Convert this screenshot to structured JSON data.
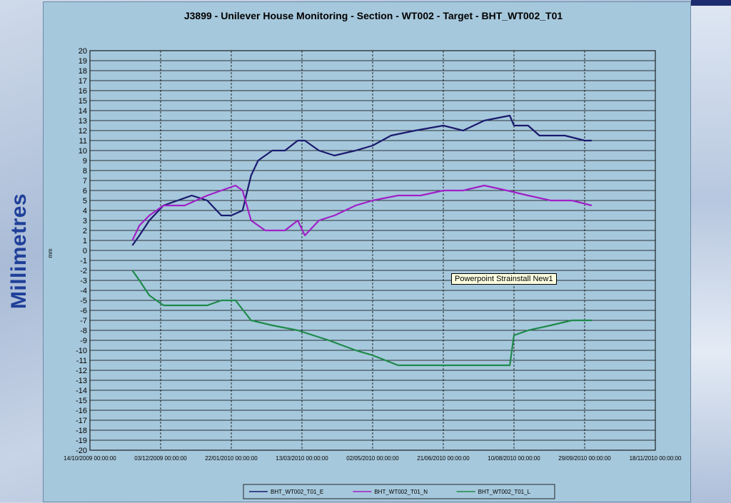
{
  "side_label": "Millimetres",
  "tooltip": "Powerpoint Strainstall New1",
  "colors": {
    "frame_bg": "#a6c8dc",
    "grid": "#000000",
    "series_E": "#1a1a6e",
    "series_N": "#a020c8",
    "series_L": "#1e8a4a",
    "side_label": "#1f3f99"
  },
  "chart_data": {
    "type": "line",
    "title": "J3899 - Unilever House Monitoring - Section - WT002 - Target - BHT_WT002_T01",
    "ylabel": "mm",
    "xlabel": "",
    "ylim": [
      -20,
      20
    ],
    "y_ticks": [
      20,
      19,
      18,
      17,
      16,
      15,
      14,
      13,
      12,
      11,
      10,
      9,
      8,
      7,
      6,
      5,
      4,
      3,
      2,
      1,
      0,
      -1,
      -2,
      -3,
      -4,
      -5,
      -6,
      -7,
      -8,
      -9,
      -10,
      -11,
      -12,
      -13,
      -14,
      -15,
      -16,
      -17,
      -18,
      -19,
      -20
    ],
    "x_ticks": [
      "14/10/2009 00:00:00",
      "03/12/2009 00:00:00",
      "22/01/2010 00:00:00",
      "13/03/2010 00:00:00",
      "02/05/2010 00:00:00",
      "21/06/2010 00:00:00",
      "10/08/2010 00:00:00",
      "29/09/2010 00:00:00",
      "18/11/2010 00:00:00"
    ],
    "grid": true,
    "legend_position": "bottom",
    "series": [
      {
        "name": "BHT_WT002_T01_E",
        "x": [
          "2009-11-13",
          "2009-11-18",
          "2009-11-25",
          "2009-12-05",
          "2009-12-15",
          "2009-12-25",
          "2010-01-05",
          "2010-01-15",
          "2010-01-22",
          "2010-01-30",
          "2010-02-05",
          "2010-02-10",
          "2010-02-20",
          "2010-03-01",
          "2010-03-10",
          "2010-03-15",
          "2010-03-25",
          "2010-04-05",
          "2010-04-20",
          "2010-05-02",
          "2010-05-15",
          "2010-06-01",
          "2010-06-21",
          "2010-07-05",
          "2010-07-20",
          "2010-08-07",
          "2010-08-10",
          "2010-08-20",
          "2010-08-28",
          "2010-09-05",
          "2010-09-15",
          "2010-09-29",
          "2010-10-04"
        ],
        "values": [
          0.5,
          1.5,
          3,
          4.5,
          5,
          5.5,
          5,
          3.5,
          3.5,
          4,
          7.5,
          9,
          10,
          10,
          11,
          11,
          10,
          9.5,
          10,
          10.5,
          11.5,
          12,
          12.5,
          12,
          13,
          13.5,
          12.5,
          12.5,
          11.5,
          11.5,
          11.5,
          11,
          11
        ]
      },
      {
        "name": "BHT_WT002_T01_N",
        "x": [
          "2009-11-13",
          "2009-11-18",
          "2009-11-25",
          "2009-12-05",
          "2009-12-20",
          "2010-01-05",
          "2010-01-15",
          "2010-01-25",
          "2010-01-30",
          "2010-02-05",
          "2010-02-15",
          "2010-03-01",
          "2010-03-10",
          "2010-03-15",
          "2010-03-25",
          "2010-04-05",
          "2010-04-20",
          "2010-05-02",
          "2010-05-20",
          "2010-06-05",
          "2010-06-21",
          "2010-07-05",
          "2010-07-20",
          "2010-08-05",
          "2010-08-20",
          "2010-09-05",
          "2010-09-20",
          "2010-10-04"
        ],
        "values": [
          1,
          2.5,
          3.5,
          4.5,
          4.5,
          5.5,
          6,
          6.5,
          6,
          3,
          2,
          2,
          3,
          1.5,
          3,
          3.5,
          4.5,
          5,
          5.5,
          5.5,
          6,
          6,
          6.5,
          6,
          5.5,
          5,
          5,
          4.5
        ]
      },
      {
        "name": "BHT_WT002_T01_L",
        "x": [
          "2009-11-13",
          "2009-11-18",
          "2009-11-25",
          "2009-12-05",
          "2009-12-20",
          "2010-01-05",
          "2010-01-15",
          "2010-01-25",
          "2010-02-05",
          "2010-02-20",
          "2010-03-10",
          "2010-04-01",
          "2010-04-20",
          "2010-05-02",
          "2010-05-20",
          "2010-06-05",
          "2010-06-21",
          "2010-07-10",
          "2010-08-05",
          "2010-08-07",
          "2010-08-10",
          "2010-08-20",
          "2010-09-05",
          "2010-09-20",
          "2010-10-04"
        ],
        "values": [
          -2,
          -3,
          -4.5,
          -5.5,
          -5.5,
          -5.5,
          -5,
          -5,
          -7,
          -7.5,
          -8,
          -9,
          -10,
          -10.5,
          -11.5,
          -11.5,
          -11.5,
          -11.5,
          -11.5,
          -11.5,
          -8.5,
          -8,
          -7.5,
          -7,
          -7
        ]
      }
    ]
  }
}
